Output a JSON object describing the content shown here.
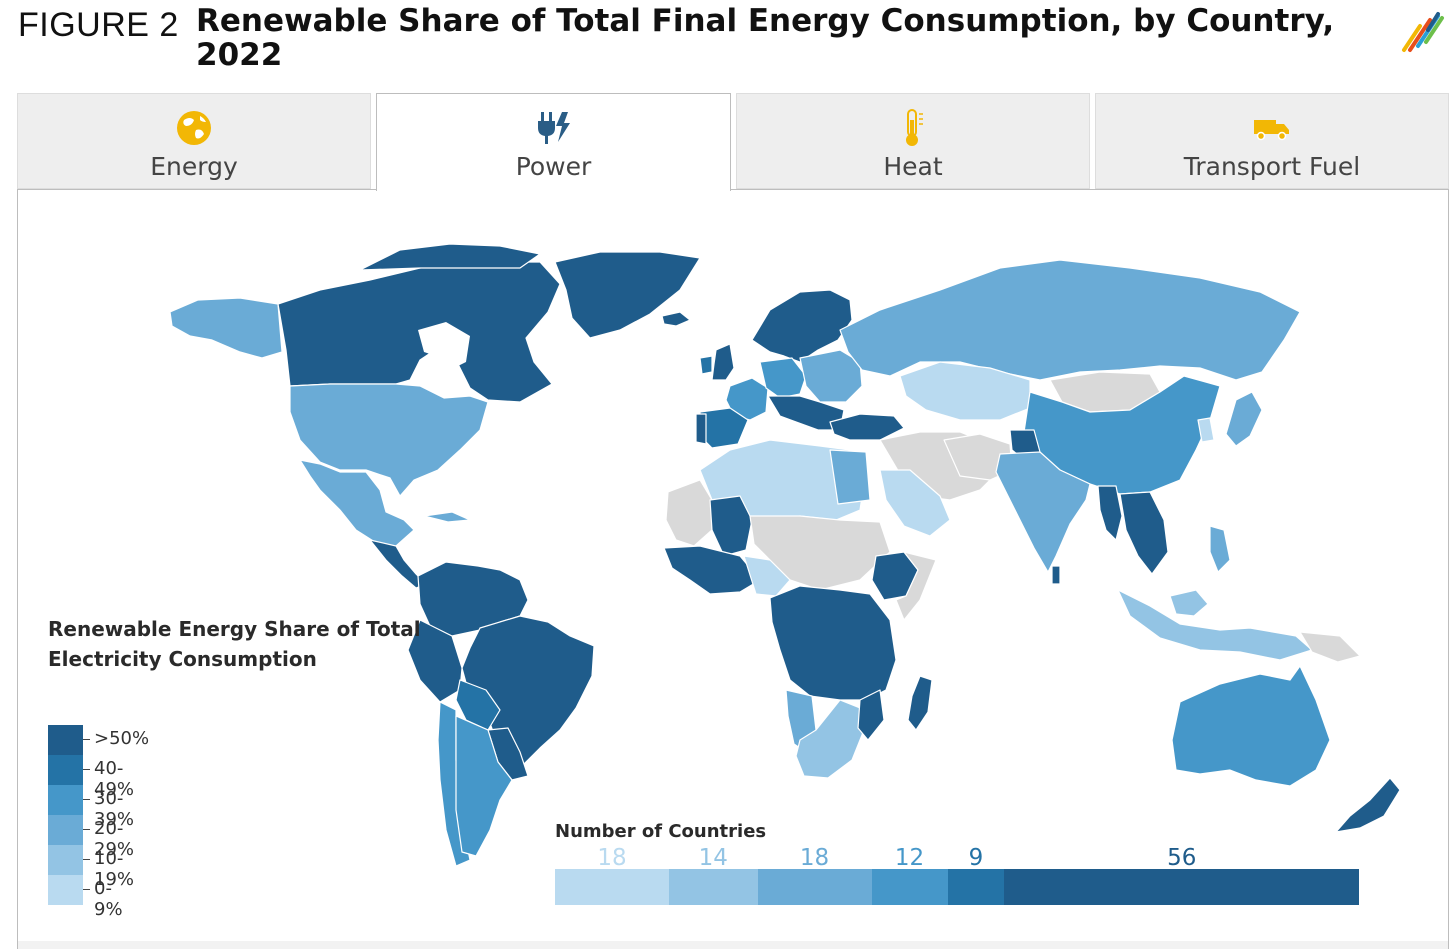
{
  "figure": {
    "label": "FIGURE 2",
    "title": "Renewable Share of Total Final Energy Consumption, by Country, 2022"
  },
  "tabs": [
    {
      "label": "Energy",
      "icon": "globe-icon",
      "icon_color": "#f2b705",
      "active": false
    },
    {
      "label": "Power",
      "icon": "power-plug-icon",
      "icon_color": "#2a5d86",
      "active": true
    },
    {
      "label": "Heat",
      "icon": "thermometer-icon",
      "icon_color": "#f2b705",
      "active": false
    },
    {
      "label": "Transport Fuel",
      "icon": "truck-icon",
      "icon_color": "#f2b705",
      "active": false
    }
  ],
  "legend": {
    "title": "Renewable Energy Share of Total Electricity Consumption",
    "items": [
      {
        "label": ">50%",
        "color": "#1f5c8b"
      },
      {
        "label": "40-49%",
        "color": "#2473a6"
      },
      {
        "label": "30-39%",
        "color": "#4597c9"
      },
      {
        "label": "20-29%",
        "color": "#6aabd6"
      },
      {
        "label": "10-19%",
        "color": "#93c4e4"
      },
      {
        "label": "0-9%",
        "color": "#b9daf0"
      }
    ],
    "no_data_color": "#d9d9d9"
  },
  "country_counts": {
    "title": "Number of Countries",
    "segments": [
      {
        "count": 18,
        "color": "#b9daf0"
      },
      {
        "count": 14,
        "color": "#93c4e4"
      },
      {
        "count": 18,
        "color": "#6aabd6"
      },
      {
        "count": 12,
        "color": "#4597c9"
      },
      {
        "count": 9,
        "color": "#2473a6"
      },
      {
        "count": 56,
        "color": "#1f5c8b"
      }
    ]
  }
}
